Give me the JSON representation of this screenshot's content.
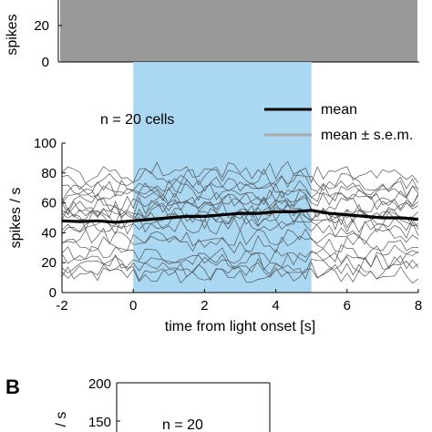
{
  "panel_top": {
    "ylabel": "spikes",
    "yticks": [
      0,
      20
    ],
    "bar_color": "#999999"
  },
  "panel_main": {
    "note": "n = 20 cells",
    "legend": {
      "mean_label": "mean",
      "sem_label": "mean ± s.e.m.",
      "mean_color": "#000000",
      "sem_color": "#aaaaaa"
    },
    "light_color": "#aad8f3"
  },
  "panel_b": {
    "letter": "B",
    "note": "n = 20",
    "ylabel": "/ s",
    "yticks": [
      150,
      200
    ]
  },
  "chart_data": {
    "type": "line",
    "xlabel": "time from light onset [s]",
    "ylabel": "spikes / s",
    "xlim": [
      -2,
      8
    ],
    "ylim": [
      0,
      100
    ],
    "xticks": [
      -2,
      0,
      2,
      4,
      6,
      8
    ],
    "yticks": [
      0,
      20,
      40,
      60,
      80,
      100
    ],
    "light_on_interval": [
      0,
      5
    ],
    "mean_series": {
      "name": "mean",
      "x": [
        -2,
        -1.5,
        -1,
        -0.5,
        0,
        0.5,
        1,
        1.5,
        2,
        2.5,
        3,
        3.5,
        4,
        4.5,
        5,
        5.5,
        6,
        6.5,
        7,
        7.5,
        8
      ],
      "values": [
        48,
        47.5,
        48,
        47,
        48,
        49,
        50,
        51,
        51,
        52,
        53,
        53,
        54,
        54,
        55,
        53,
        52,
        51,
        50,
        50,
        49
      ]
    },
    "cell_baselines": [
      12,
      15,
      19,
      22,
      26,
      33,
      38,
      42,
      45,
      48,
      50,
      53,
      56,
      58,
      61,
      64,
      67,
      70,
      74,
      79
    ]
  }
}
